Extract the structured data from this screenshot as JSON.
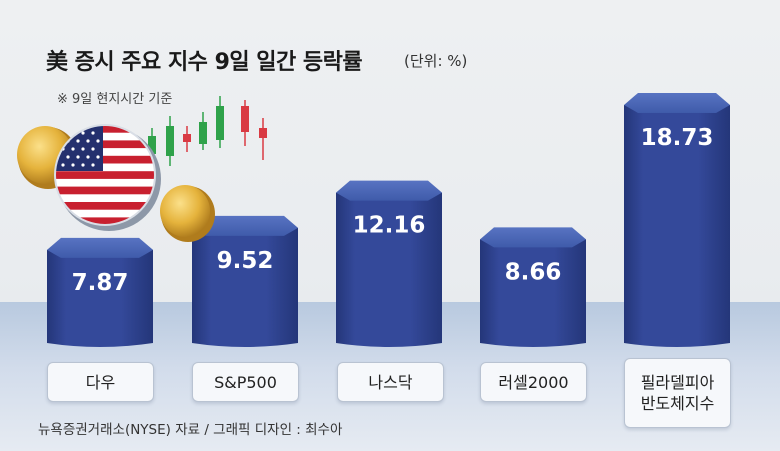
{
  "title": "美 증시 주요 지수 9일 일간 등락률",
  "unit": "(단위: %)",
  "note": "※ 9일 현지시간 기준",
  "source": "뉴욕증권거래소(NYSE) 자료 / 그래픽 디자인 : 최수아",
  "colors": {
    "bar_top": "#3f5baa",
    "bar_body": "#34499a",
    "bar_dark": "#243679"
  },
  "chart_data": {
    "type": "bar",
    "categories": [
      "다우",
      "S&P500",
      "나스닥",
      "러셀2000",
      "필라델피아\n반도체지수"
    ],
    "values": [
      7.87,
      9.52,
      12.16,
      8.66,
      18.73
    ],
    "value_labels": [
      "7.87",
      "9.52",
      "12.16",
      "8.66",
      "18.73"
    ],
    "title": "美 증시 주요 지수 9일 일간 등락률",
    "ylabel": "",
    "unit": "%",
    "ylim": [
      0,
      20
    ],
    "grid": false,
    "legend": "none"
  }
}
